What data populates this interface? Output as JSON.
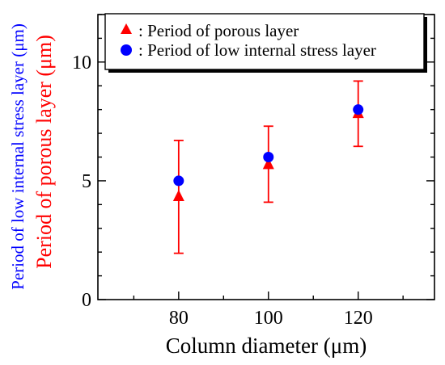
{
  "chart_data": {
    "type": "scatter",
    "xlabel": "Column diameter (μm)",
    "ylabel_outer": "Period of low internal stress layer (μm)",
    "ylabel_inner": "Period of porous layer (μm)",
    "xlim": [
      62,
      137
    ],
    "ylim": [
      0,
      12
    ],
    "x_ticks": [
      80,
      100,
      120
    ],
    "x_tick_labels": [
      "80",
      "100",
      "120"
    ],
    "y_ticks": [
      0,
      5,
      10
    ],
    "y_tick_labels": [
      "0",
      "5",
      "10"
    ],
    "grid": false,
    "legend_position": "top-right",
    "series": [
      {
        "name": ": Period of porous layer",
        "marker": "triangle",
        "color": "#ff0000",
        "x": [
          80,
          100,
          120
        ],
        "y": [
          4.35,
          5.7,
          7.85
        ],
        "err_low": [
          1.95,
          4.1,
          6.45
        ],
        "err_high": [
          6.7,
          7.3,
          9.2
        ]
      },
      {
        "name": ": Period of low internal stress layer",
        "marker": "circle",
        "color": "#0000ff",
        "x": [
          80,
          100,
          120
        ],
        "y": [
          5.0,
          6.0,
          8.0
        ]
      }
    ]
  },
  "colors": {
    "red": "#ff0000",
    "blue": "#0000ff",
    "axis": "#000000"
  }
}
